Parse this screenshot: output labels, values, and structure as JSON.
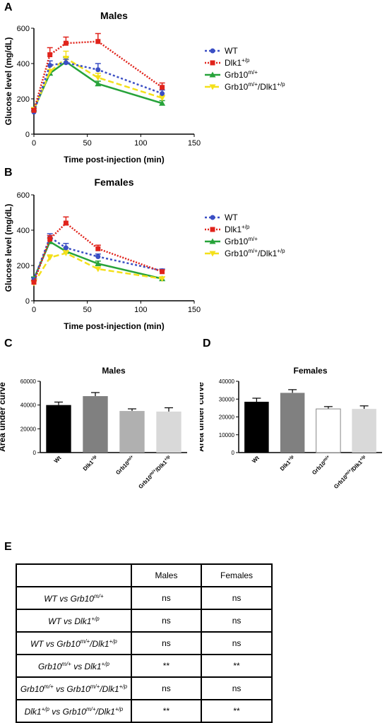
{
  "panels": {
    "a": "A",
    "b": "B",
    "c": "C",
    "d": "D",
    "e": "E"
  },
  "colors": {
    "WT": "#3b4fc4",
    "Dlk1": "#e0231b",
    "Grb10": "#27a33a",
    "Combo": "#f4e01a",
    "bar1": "#000000",
    "bar2": "#808080",
    "bar3": "#b0b0b0",
    "bar3w": "#ffffff",
    "bar4": "#d9d9d9"
  },
  "legend": [
    {
      "base": "WT",
      "sup": "",
      "tail": "",
      "tailsup": "",
      "color": "#3b4fc4",
      "marker": "circle",
      "dash": "3,3"
    },
    {
      "base": "Dlk1",
      "sup": "+/p",
      "tail": "",
      "tailsup": "",
      "color": "#e0231b",
      "marker": "square",
      "dash": "2,2"
    },
    {
      "base": "Grb10",
      "sup": "m/+",
      "tail": "",
      "tailsup": "",
      "color": "#27a33a",
      "marker": "triangle",
      "dash": ""
    },
    {
      "base": "Grb10",
      "sup": "m/+",
      "tail": "/Dlk1",
      "tailsup": "+/p",
      "color": "#f4e01a",
      "marker": "tridown",
      "dash": "8,4"
    }
  ],
  "chart_data": [
    {
      "type": "line",
      "title": "Males",
      "xlabel": "Time post-injection (min)",
      "ylabel": "Glucose level (mg/dL)",
      "xlim": [
        0,
        150
      ],
      "ylim": [
        0,
        600
      ],
      "xticks": [
        0,
        50,
        100,
        150
      ],
      "yticks": [
        0,
        200,
        400,
        600
      ],
      "x": [
        0,
        15,
        30,
        60,
        120
      ],
      "series": [
        {
          "name": "WT",
          "values": [
            125,
            390,
            405,
            365,
            230
          ],
          "err": [
            10,
            25,
            20,
            35,
            20
          ]
        },
        {
          "name": "Dlk1+/p",
          "values": [
            135,
            450,
            515,
            525,
            265
          ],
          "err": [
            10,
            40,
            35,
            45,
            25
          ]
        },
        {
          "name": "Grb10m/+",
          "values": [
            140,
            345,
            410,
            285,
            175
          ],
          "err": [
            10,
            20,
            25,
            15,
            15
          ]
        },
        {
          "name": "Grb10m/+/Dlk1+/p",
          "values": [
            140,
            355,
            430,
            320,
            205
          ],
          "err": [
            10,
            30,
            40,
            25,
            15
          ]
        }
      ]
    },
    {
      "type": "line",
      "title": "Females",
      "xlabel": "Time post-injection (min)",
      "ylabel": "Glucose level (mg/dL)",
      "xlim": [
        0,
        150
      ],
      "ylim": [
        0,
        600
      ],
      "xticks": [
        0,
        50,
        100,
        150
      ],
      "yticks": [
        0,
        200,
        400,
        600
      ],
      "x": [
        0,
        15,
        30,
        60,
        120
      ],
      "series": [
        {
          "name": "WT",
          "values": [
            120,
            360,
            300,
            250,
            170
          ],
          "err": [
            10,
            20,
            25,
            15,
            10
          ]
        },
        {
          "name": "Dlk1+/p",
          "values": [
            105,
            350,
            440,
            295,
            165
          ],
          "err": [
            10,
            20,
            35,
            20,
            10
          ]
        },
        {
          "name": "Grb10m/+",
          "values": [
            125,
            335,
            280,
            210,
            125
          ],
          "err": [
            10,
            20,
            20,
            15,
            10
          ]
        },
        {
          "name": "Grb10m/+/Dlk1+/p",
          "values": [
            100,
            245,
            270,
            180,
            125
          ],
          "err": [
            10,
            15,
            15,
            10,
            10
          ]
        }
      ]
    },
    {
      "type": "bar",
      "title": "Males",
      "ylabel": "Area under curve",
      "ylim": [
        0,
        60000
      ],
      "yticks": [
        0,
        20000,
        40000,
        60000
      ],
      "categories": [
        "Wt",
        "Dlk1+/p",
        "Grb10m/+",
        "Grb10m/+/Dlk1+/p"
      ],
      "values": [
        40000,
        47500,
        35000,
        34500
      ],
      "err": [
        2500,
        3000,
        1800,
        3200
      ]
    },
    {
      "type": "bar",
      "title": "Females",
      "ylabel": "Area under curve",
      "ylim": [
        0,
        40000
      ],
      "yticks": [
        0,
        10000,
        20000,
        30000,
        40000
      ],
      "categories": [
        "Wt",
        "Dlk1+/p",
        "Grb10m/+",
        "Grb10m/+/Dlk1+/p"
      ],
      "values": [
        28500,
        33500,
        24500,
        24500
      ],
      "err": [
        2000,
        1800,
        1300,
        1700
      ]
    }
  ],
  "table": {
    "headers": [
      "",
      "Males",
      "Females"
    ],
    "rows": [
      {
        "a": "WT",
        "asup": "",
        "b": " vs Grb10",
        "bsup": "m/+",
        "c": "",
        "csup": "",
        "males": "ns",
        "females": "ns"
      },
      {
        "a": "WT",
        "asup": "",
        "b": " vs Dlk1",
        "bsup": "+/p",
        "c": "",
        "csup": "",
        "males": "ns",
        "females": "ns"
      },
      {
        "a": "WT",
        "asup": "",
        "b": " vs Grb10",
        "bsup": "m/+",
        "c": "/Dlk1",
        "csup": "+/p",
        "males": "ns",
        "females": "ns"
      },
      {
        "a": "Grb10",
        "asup": "m/+",
        "b": " vs Dlk1",
        "bsup": "+/p",
        "c": "",
        "csup": "",
        "males": "**",
        "females": "**"
      },
      {
        "a": "Grb10",
        "asup": "m/+",
        "b": " vs Grb10",
        "bsup": "m/+",
        "c": "/Dlk1",
        "csup": "+/p",
        "males": "ns",
        "females": "ns"
      },
      {
        "a": "Dlk1",
        "asup": "+/p",
        "b": " vs Grb10",
        "bsup": "m/+",
        "c": "/Dlk1",
        "csup": "+/p",
        "males": "**",
        "females": "**"
      }
    ]
  }
}
